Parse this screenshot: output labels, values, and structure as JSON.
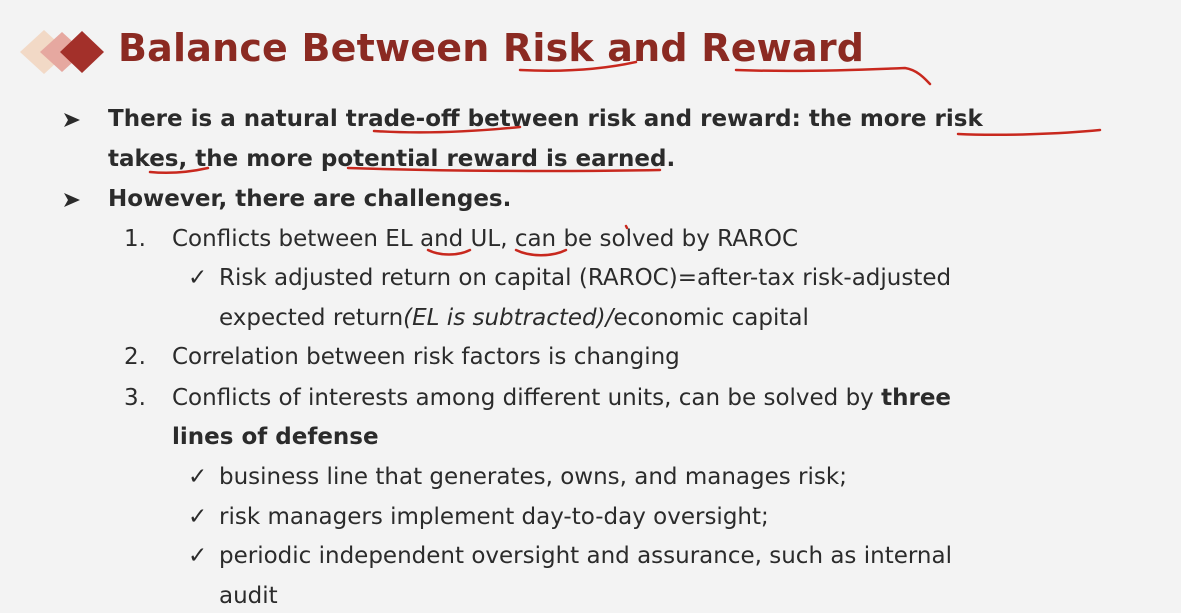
{
  "title": {
    "part1": "Balance Between ",
    "risk": "Risk",
    "part2": " and ",
    "reward": "Reward"
  },
  "bullets": {
    "b1": {
      "line1": "There is a natural trade-off between risk and reward: the more risk",
      "line2": "takes, the more potential reward is earned."
    },
    "b2": {
      "text": "However, there are challenges."
    }
  },
  "items": {
    "i1": {
      "number": "1.",
      "text": "Conflicts between EL and UL, can be solved by RAROC",
      "sub": {
        "line1": "Risk adjusted return on capital (RAROC)=after-tax risk-adjusted",
        "line2_a": "expected return",
        "line2_b": "(EL is subtracted)/",
        "line2_c": "economic capital"
      }
    },
    "i2": {
      "number": "2.",
      "text": "Correlation between risk factors is changing"
    },
    "i3": {
      "number": "3.",
      "text_a": "Conflicts of interests among different units, can be solved by ",
      "text_b": "three",
      "line2": "lines of defense",
      "subs": [
        "business line that generates, owns, and manages risk;",
        "risk managers implement day-to-day oversight;",
        "periodic independent oversight and assurance, such as internal"
      ],
      "sub_last_line2": "audit"
    }
  },
  "symbols": {
    "check": "✓"
  },
  "colors": {
    "title": "#8b2a22",
    "text": "#2b2b2b",
    "ink": "#c8281e",
    "background": "#f3f3f3"
  }
}
